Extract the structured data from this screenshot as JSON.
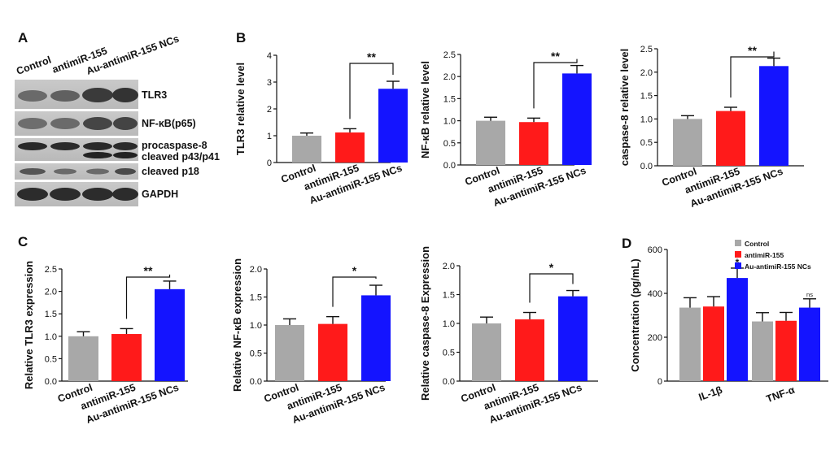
{
  "colors": {
    "control": "#a8a8a8",
    "antimir": "#ff1a1a",
    "au": "#1414ff"
  },
  "panel_letters": [
    "A",
    "B",
    "C",
    "D"
  ],
  "blot": {
    "lanes": [
      "Control",
      "antimiR-155",
      "Au-antimiR-155 NCs"
    ],
    "rows": [
      "TLR3",
      "NF-κB(p65)",
      "procaspase-8",
      "cleaved p43/p41",
      "cleaved p18",
      "GAPDH"
    ]
  },
  "chart_data": [
    {
      "id": "b1",
      "type": "bar",
      "categories": [
        "Control",
        "antimiR-155",
        "Au-antimiR-155 NCs"
      ],
      "values": [
        1.0,
        1.12,
        2.75
      ],
      "errors": [
        0.1,
        0.14,
        0.28
      ],
      "ylabel": "TLR3 relative level",
      "ylim": [
        0,
        4
      ],
      "ticks": [
        "0",
        "1",
        "2",
        "3",
        "4"
      ],
      "significance": {
        "between": [
          1,
          2
        ],
        "label": "**"
      }
    },
    {
      "id": "b2",
      "type": "bar",
      "categories": [
        "Control",
        "antimiR-155",
        "Au-antimiR-155 NCs"
      ],
      "values": [
        1.0,
        0.97,
        2.07
      ],
      "errors": [
        0.08,
        0.09,
        0.18
      ],
      "ylabel": "NF-κB relative level",
      "ylim": [
        0,
        2.5
      ],
      "ticks": [
        "0.0",
        "0.5",
        "1.0",
        "1.5",
        "2.0",
        "2.5"
      ],
      "significance": {
        "between": [
          1,
          2
        ],
        "label": "**"
      }
    },
    {
      "id": "b3",
      "type": "bar",
      "categories": [
        "Control",
        "antimiR-155",
        "Au-antimiR-155 NCs"
      ],
      "values": [
        1.0,
        1.17,
        2.13
      ],
      "errors": [
        0.07,
        0.08,
        0.17
      ],
      "ylabel": "caspase-8  relative level",
      "ylim": [
        0,
        2.5
      ],
      "ticks": [
        "0.0",
        "0.5",
        "1.0",
        "1.5",
        "2.0",
        "2.5"
      ],
      "significance": {
        "between": [
          1,
          2
        ],
        "label": "**"
      }
    },
    {
      "id": "c1",
      "type": "bar",
      "categories": [
        "Control",
        "antimiR-155",
        "Au-antimiR-155 NCs"
      ],
      "values": [
        1.0,
        1.05,
        2.05
      ],
      "errors": [
        0.1,
        0.12,
        0.18
      ],
      "ylabel": "Relative  TLR3 expression",
      "ylim": [
        0,
        2.5
      ],
      "ticks": [
        "0.0",
        "0.5",
        "1.0",
        "1.5",
        "2.0",
        "2.5"
      ],
      "significance": {
        "between": [
          1,
          2
        ],
        "label": "**"
      }
    },
    {
      "id": "c2",
      "type": "bar",
      "categories": [
        "Control",
        "antimiR-155",
        "Au-antimiR-155 NCs"
      ],
      "values": [
        1.0,
        1.02,
        1.53
      ],
      "errors": [
        0.11,
        0.13,
        0.18
      ],
      "ylabel": "Relative  NF-κB expression",
      "ylim": [
        0,
        2.0
      ],
      "ticks": [
        "0.0",
        "0.5",
        "1.0",
        "1.5",
        "2.0"
      ],
      "significance": {
        "between": [
          1,
          2
        ],
        "label": "*"
      }
    },
    {
      "id": "c3",
      "type": "bar",
      "categories": [
        "Control",
        "antimiR-155",
        "Au-antimiR-155 NCs"
      ],
      "values": [
        1.0,
        1.07,
        1.47
      ],
      "errors": [
        0.11,
        0.12,
        0.1
      ],
      "ylabel": "Relative caspase-8 Expression",
      "ylim": [
        0,
        2.0
      ],
      "ticks": [
        "0.0",
        "0.5",
        "1.0",
        "1.5",
        "2.0"
      ],
      "significance": {
        "between": [
          1,
          2
        ],
        "label": "*"
      }
    },
    {
      "id": "d",
      "type": "bar",
      "categories": [
        "IL-1β",
        "TNF-α"
      ],
      "series": [
        {
          "name": "Control",
          "values": [
            335,
            272
          ],
          "errors": [
            45,
            40
          ]
        },
        {
          "name": "antimiR-155",
          "values": [
            340,
            275
          ],
          "errors": [
            45,
            38
          ]
        },
        {
          "name": "Au-antimiR-155 NCs",
          "values": [
            470,
            335
          ],
          "errors": [
            45,
            40
          ]
        }
      ],
      "ylabel": "Concentration (pg/mL)",
      "ylim": [
        0,
        600
      ],
      "ticks": [
        "0",
        "200",
        "400",
        "600"
      ],
      "annotations": [
        "*",
        "ns"
      ]
    }
  ]
}
